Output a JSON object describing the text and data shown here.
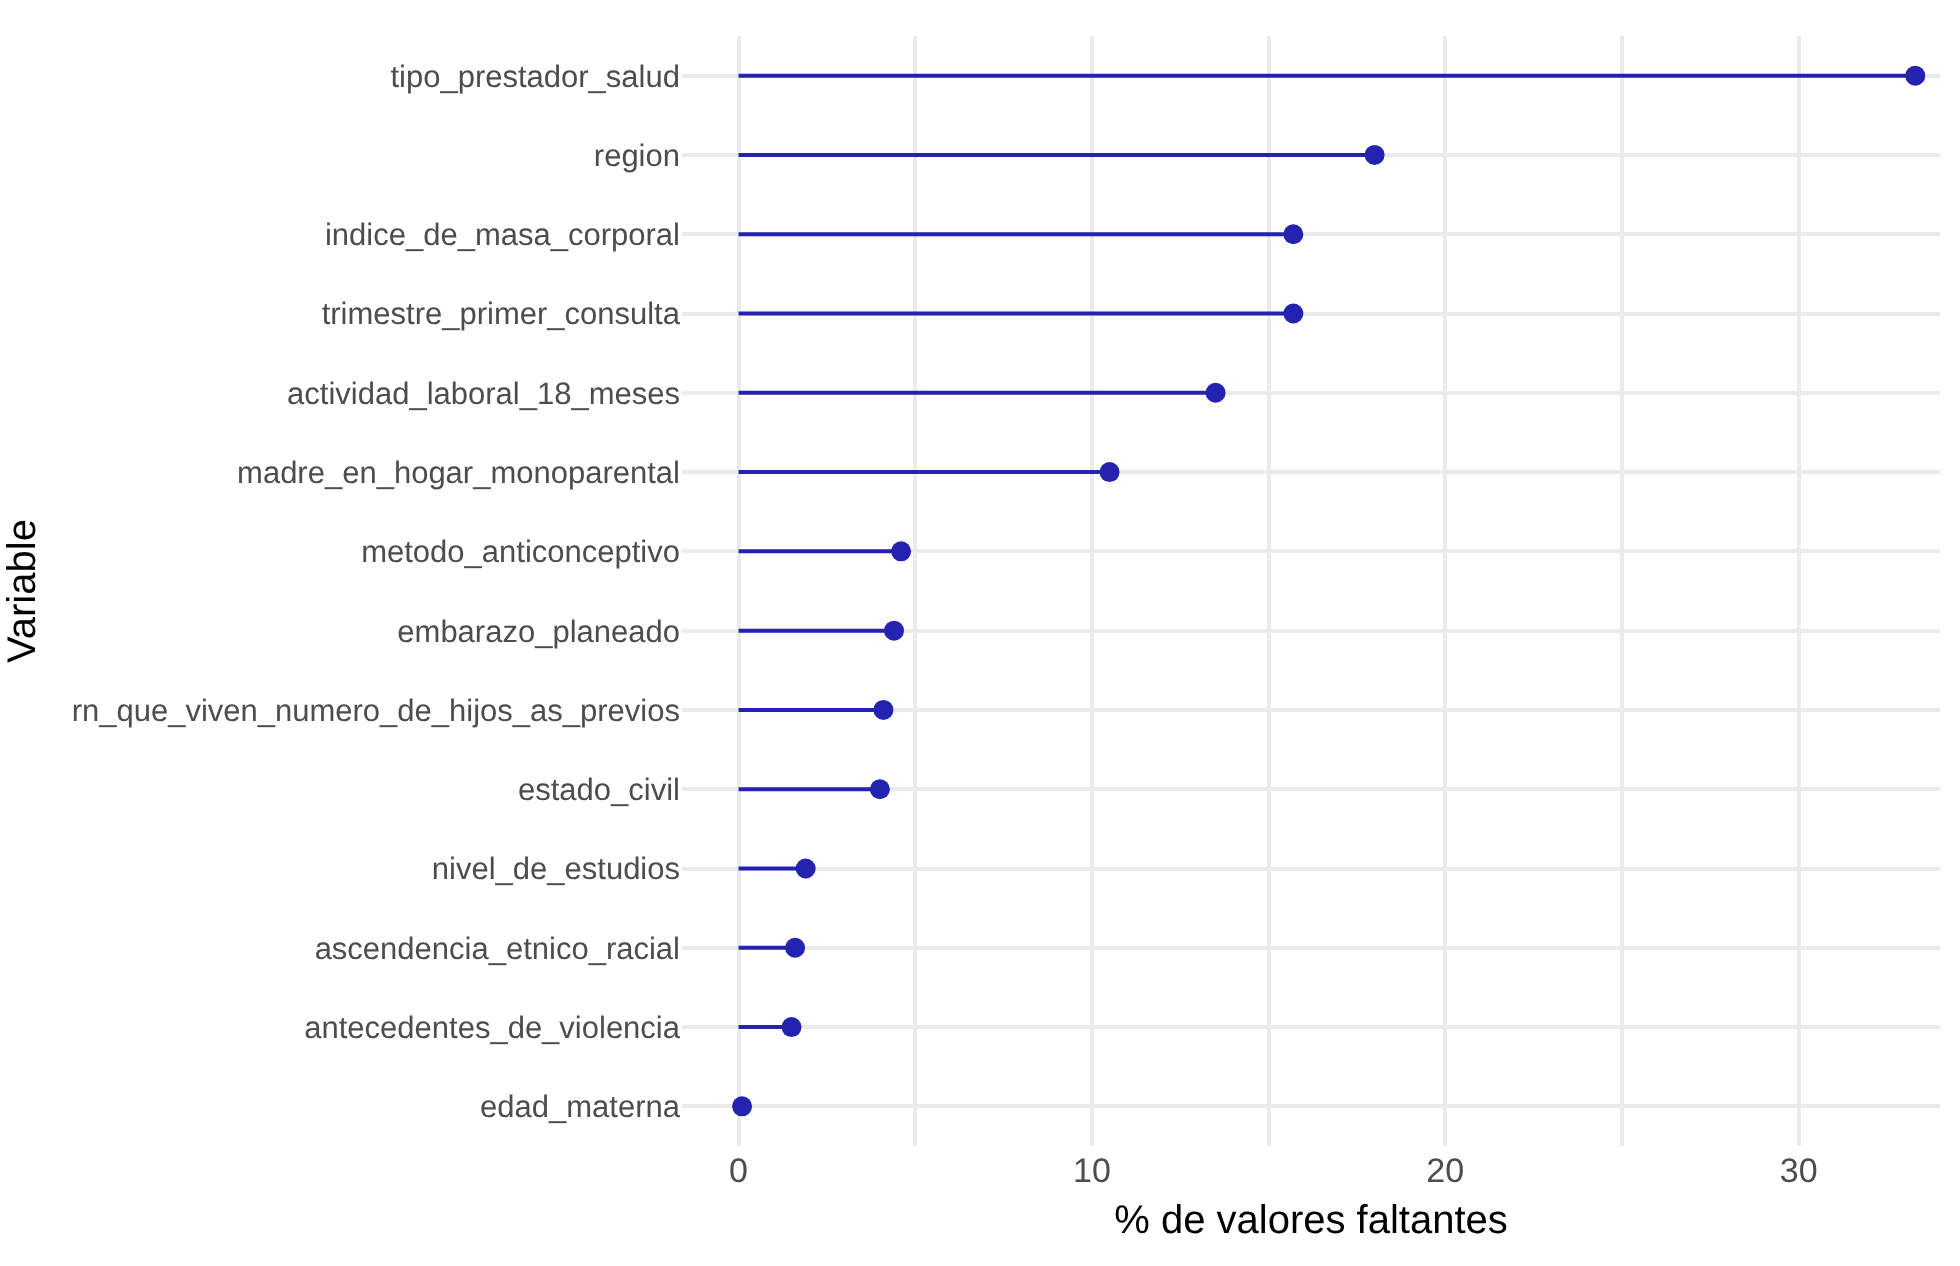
{
  "chart_data": {
    "type": "lollipop",
    "orientation": "horizontal",
    "xlabel": "% de valores faltantes",
    "ylabel": "Variable",
    "categories": [
      "tipo_prestador_salud",
      "region",
      "indice_de_masa_corporal",
      "trimestre_primer_consulta",
      "actividad_laboral_18_meses",
      "madre_en_hogar_monoparental",
      "metodo_anticonceptivo",
      "embarazo_planeado",
      "rn_que_viven_numero_de_hijos_as_previos",
      "estado_civil",
      "nivel_de_estudios",
      "ascendencia_etnico_racial",
      "antecedentes_de_violencia",
      "edad_materna"
    ],
    "values": [
      33.3,
      18.0,
      15.7,
      15.7,
      13.5,
      10.5,
      4.6,
      4.4,
      4.1,
      4.0,
      1.9,
      1.6,
      1.5,
      0.1
    ],
    "color": "#2323b0",
    "marker": "circle",
    "grid": true,
    "xlim": [
      -1.6,
      34
    ],
    "xticks": [
      0,
      {
        "value": 5,
        "label": null
      },
      10,
      {
        "value": 15,
        "label": null
      },
      20,
      {
        "value": 25,
        "label": null
      },
      30
    ]
  }
}
